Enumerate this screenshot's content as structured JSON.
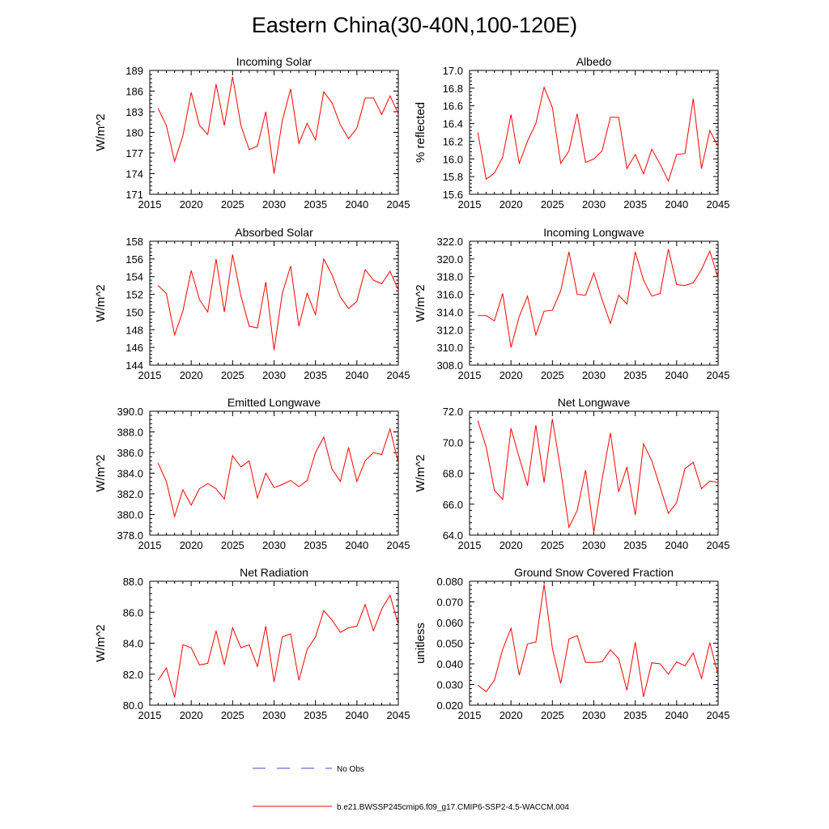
{
  "figure": {
    "title": "Eastern China(30-40N,100-120E)"
  },
  "legend": {
    "no_obs_label": "No Obs",
    "model_label": "b.e21.BWSSP245cmip6.f09_g17.CMIP6-SSP2-4.5-WACCM.004",
    "no_obs_color": "#4444cc",
    "model_color": "#ff0000"
  },
  "chart_data": [
    {
      "type": "line",
      "title": "Incoming Solar",
      "ylabel": "W/m^2",
      "xlabel": "",
      "xlim": [
        2015,
        2045
      ],
      "xticks": [
        "2015",
        "2020",
        "2025",
        "2030",
        "2035",
        "2040",
        "2045"
      ],
      "ylim": [
        171,
        189
      ],
      "yticks": [
        "171",
        "174",
        "177",
        "180",
        "183",
        "186",
        "189"
      ],
      "x": [
        2016,
        2017,
        2018,
        2019,
        2020,
        2021,
        2022,
        2023,
        2024,
        2025,
        2026,
        2027,
        2028,
        2029,
        2030,
        2031,
        2032,
        2033,
        2034,
        2035,
        2036,
        2037,
        2038,
        2039,
        2040,
        2041,
        2042,
        2043,
        2044,
        2045
      ],
      "series": [
        {
          "name": "b.e21.BWSSP245cmip6.f09_g17.CMIP6-SSP2-4.5-WACCM.004",
          "values": [
            183.5,
            181.0,
            175.8,
            179.5,
            185.8,
            181.0,
            179.7,
            187.0,
            181.0,
            188.1,
            181.0,
            177.5,
            178.0,
            183.0,
            174.0,
            181.7,
            186.3,
            178.4,
            181.3,
            178.9,
            185.9,
            184.3,
            181.1,
            179.1,
            180.6,
            185.0,
            185.0,
            182.6,
            185.3,
            182.7
          ]
        }
      ]
    },
    {
      "type": "line",
      "title": "Albedo",
      "ylabel": "% reflected",
      "xlabel": "",
      "xlim": [
        2015,
        2045
      ],
      "xticks": [
        "2015",
        "2020",
        "2025",
        "2030",
        "2035",
        "2040",
        "2045"
      ],
      "ylim": [
        15.6,
        17.0
      ],
      "yticks": [
        "15.6",
        "15.8",
        "16.0",
        "16.2",
        "16.4",
        "16.6",
        "16.8",
        "17.0"
      ],
      "x": [
        2016,
        2017,
        2018,
        2019,
        2020,
        2021,
        2022,
        2023,
        2024,
        2025,
        2026,
        2027,
        2028,
        2029,
        2030,
        2031,
        2032,
        2033,
        2034,
        2035,
        2036,
        2037,
        2038,
        2039,
        2040,
        2041,
        2042,
        2043,
        2044,
        2045
      ],
      "series": [
        {
          "name": "b.e21.BWSSP245cmip6.f09_g17.CMIP6-SSP2-4.5-WACCM.004",
          "values": [
            16.3,
            15.77,
            15.84,
            16.02,
            16.5,
            15.95,
            16.2,
            16.4,
            16.81,
            16.58,
            15.95,
            16.09,
            16.51,
            15.96,
            16.0,
            16.09,
            16.47,
            16.47,
            15.89,
            16.05,
            15.83,
            16.11,
            15.94,
            15.75,
            16.05,
            16.06,
            16.68,
            15.89,
            16.32,
            16.14
          ]
        }
      ]
    },
    {
      "type": "line",
      "title": "Absorbed Solar",
      "ylabel": "W/m^2",
      "xlabel": "",
      "xlim": [
        2015,
        2045
      ],
      "xticks": [
        "2015",
        "2020",
        "2025",
        "2030",
        "2035",
        "2040",
        "2045"
      ],
      "ylim": [
        144,
        158
      ],
      "yticks": [
        "144",
        "146",
        "148",
        "150",
        "152",
        "154",
        "156",
        "158"
      ],
      "x": [
        2016,
        2017,
        2018,
        2019,
        2020,
        2021,
        2022,
        2023,
        2024,
        2025,
        2026,
        2027,
        2028,
        2029,
        2030,
        2031,
        2032,
        2033,
        2034,
        2035,
        2036,
        2037,
        2038,
        2039,
        2040,
        2041,
        2042,
        2043,
        2044,
        2045
      ],
      "series": [
        {
          "name": "b.e21.BWSSP245cmip6.f09_g17.CMIP6-SSP2-4.5-WACCM.004",
          "values": [
            153.0,
            152.1,
            147.4,
            150.1,
            154.7,
            151.4,
            150.0,
            156.0,
            150.0,
            156.5,
            151.8,
            148.4,
            148.2,
            153.4,
            145.7,
            152.1,
            155.2,
            148.4,
            152.1,
            149.7,
            156.0,
            154.2,
            151.7,
            150.4,
            151.2,
            154.8,
            153.6,
            153.2,
            154.6,
            152.5
          ]
        }
      ]
    },
    {
      "type": "line",
      "title": "Incoming Longwave",
      "ylabel": "W/m^2",
      "xlabel": "",
      "xlim": [
        2015,
        2045
      ],
      "xticks": [
        "2015",
        "2020",
        "2025",
        "2030",
        "2035",
        "2040",
        "2045"
      ],
      "ylim": [
        308.0,
        322.0
      ],
      "yticks": [
        "308.0",
        "310.0",
        "312.0",
        "314.0",
        "316.0",
        "318.0",
        "320.0",
        "322.0"
      ],
      "x": [
        2016,
        2017,
        2018,
        2019,
        2020,
        2021,
        2022,
        2023,
        2024,
        2025,
        2026,
        2027,
        2028,
        2029,
        2030,
        2031,
        2032,
        2033,
        2034,
        2035,
        2036,
        2037,
        2038,
        2039,
        2040,
        2041,
        2042,
        2043,
        2044,
        2045
      ],
      "series": [
        {
          "name": "b.e21.BWSSP245cmip6.f09_g17.CMIP6-SSP2-4.5-WACCM.004",
          "values": [
            313.6,
            313.6,
            313.0,
            316.1,
            310.0,
            313.5,
            315.8,
            311.4,
            314.1,
            314.2,
            316.4,
            320.8,
            316.0,
            315.9,
            318.4,
            315.4,
            312.7,
            315.9,
            314.9,
            320.8,
            317.6,
            315.8,
            316.1,
            321.1,
            317.1,
            317.0,
            317.3,
            318.8,
            320.9,
            317.8
          ]
        }
      ]
    },
    {
      "type": "line",
      "title": "Emitted Longwave",
      "ylabel": "W/m^2",
      "xlabel": "",
      "xlim": [
        2015,
        2045
      ],
      "xticks": [
        "2015",
        "2020",
        "2025",
        "2030",
        "2035",
        "2040",
        "2045"
      ],
      "ylim": [
        378.0,
        390.0
      ],
      "yticks": [
        "378.0",
        "380.0",
        "382.0",
        "384.0",
        "386.0",
        "388.0",
        "390.0"
      ],
      "x": [
        2016,
        2017,
        2018,
        2019,
        2020,
        2021,
        2022,
        2023,
        2024,
        2025,
        2026,
        2027,
        2028,
        2029,
        2030,
        2031,
        2032,
        2033,
        2034,
        2035,
        2036,
        2037,
        2038,
        2039,
        2040,
        2041,
        2042,
        2043,
        2044,
        2045
      ],
      "series": [
        {
          "name": "b.e21.BWSSP245cmip6.f09_g17.CMIP6-SSP2-4.5-WACCM.004",
          "values": [
            385.0,
            383.2,
            379.8,
            382.4,
            380.9,
            382.5,
            383.0,
            382.5,
            381.5,
            385.7,
            384.6,
            385.2,
            381.6,
            384.0,
            382.6,
            382.9,
            383.3,
            382.7,
            383.3,
            386.0,
            387.5,
            384.4,
            383.2,
            386.5,
            383.2,
            385.2,
            386.0,
            385.8,
            388.3,
            385.0
          ]
        }
      ]
    },
    {
      "type": "line",
      "title": "Net Longwave",
      "ylabel": "W/m^2",
      "xlabel": "",
      "xlim": [
        2015,
        2045
      ],
      "xticks": [
        "2015",
        "2020",
        "2025",
        "2030",
        "2035",
        "2040",
        "2045"
      ],
      "ylim": [
        64.0,
        72.0
      ],
      "yticks": [
        "64.0",
        "66.0",
        "68.0",
        "70.0",
        "72.0"
      ],
      "x": [
        2016,
        2017,
        2018,
        2019,
        2020,
        2021,
        2022,
        2023,
        2024,
        2025,
        2026,
        2027,
        2028,
        2029,
        2030,
        2031,
        2032,
        2033,
        2034,
        2035,
        2036,
        2037,
        2038,
        2039,
        2040,
        2041,
        2042,
        2043,
        2044,
        2045
      ],
      "series": [
        {
          "name": "b.e21.BWSSP245cmip6.f09_g17.CMIP6-SSP2-4.5-WACCM.004",
          "values": [
            71.4,
            69.7,
            66.9,
            66.3,
            70.9,
            69.0,
            67.2,
            71.1,
            67.4,
            71.5,
            68.2,
            64.5,
            65.6,
            68.2,
            64.2,
            67.6,
            70.6,
            66.8,
            68.4,
            65.3,
            69.9,
            68.8,
            67.1,
            65.4,
            66.1,
            68.3,
            68.7,
            67.0,
            67.5,
            67.4
          ]
        }
      ]
    },
    {
      "type": "line",
      "title": "Net Radiation",
      "ylabel": "W/m^2",
      "xlabel": "",
      "xlim": [
        2015,
        2045
      ],
      "xticks": [
        "2015",
        "2020",
        "2025",
        "2030",
        "2035",
        "2040",
        "2045"
      ],
      "ylim": [
        80.0,
        88.0
      ],
      "yticks": [
        "80.0",
        "82.0",
        "84.0",
        "86.0",
        "88.0"
      ],
      "x": [
        2016,
        2017,
        2018,
        2019,
        2020,
        2021,
        2022,
        2023,
        2024,
        2025,
        2026,
        2027,
        2028,
        2029,
        2030,
        2031,
        2032,
        2033,
        2034,
        2035,
        2036,
        2037,
        2038,
        2039,
        2040,
        2041,
        2042,
        2043,
        2044,
        2045
      ],
      "series": [
        {
          "name": "b.e21.BWSSP245cmip6.f09_g17.CMIP6-SSP2-4.5-WACCM.004",
          "values": [
            81.6,
            82.4,
            80.5,
            83.9,
            83.7,
            82.6,
            82.7,
            84.8,
            82.6,
            85.0,
            83.7,
            83.9,
            82.5,
            85.1,
            81.5,
            84.4,
            84.6,
            81.6,
            83.6,
            84.4,
            86.1,
            85.5,
            84.7,
            85.0,
            85.1,
            86.5,
            84.8,
            86.2,
            87.1,
            85.2
          ]
        }
      ]
    },
    {
      "type": "line",
      "title": "Ground Snow Covered Fraction",
      "ylabel": "unitless",
      "xlabel": "",
      "xlim": [
        2015,
        2045
      ],
      "xticks": [
        "2015",
        "2020",
        "2025",
        "2030",
        "2035",
        "2040",
        "2045"
      ],
      "ylim": [
        0.02,
        0.08
      ],
      "yticks": [
        "0.020",
        "0.030",
        "0.040",
        "0.050",
        "0.060",
        "0.070",
        "0.080"
      ],
      "x": [
        2016,
        2017,
        2018,
        2019,
        2020,
        2021,
        2022,
        2023,
        2024,
        2025,
        2026,
        2027,
        2028,
        2029,
        2030,
        2031,
        2032,
        2033,
        2034,
        2035,
        2036,
        2037,
        2038,
        2039,
        2040,
        2041,
        2042,
        2043,
        2044,
        2045
      ],
      "series": [
        {
          "name": "b.e21.BWSSP245cmip6.f09_g17.CMIP6-SSP2-4.5-WACCM.004",
          "values": [
            0.0297,
            0.0265,
            0.032,
            0.047,
            0.0573,
            0.0345,
            0.0497,
            0.0505,
            0.0785,
            0.0475,
            0.0305,
            0.052,
            0.0537,
            0.0407,
            0.0407,
            0.041,
            0.0468,
            0.0425,
            0.0272,
            0.0505,
            0.024,
            0.0405,
            0.04,
            0.035,
            0.041,
            0.039,
            0.0452,
            0.033,
            0.0503,
            0.0345
          ]
        }
      ]
    }
  ]
}
